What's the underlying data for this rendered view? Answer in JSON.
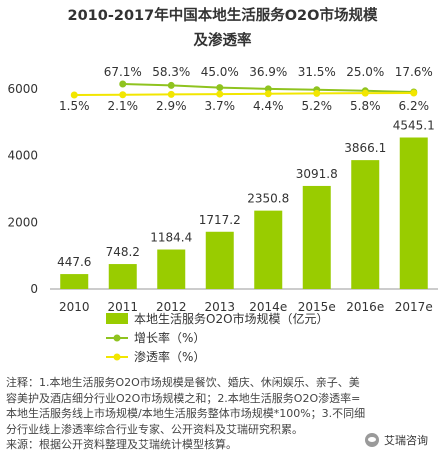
{
  "title_line1": "2010-2017年中国本地生活服务O2O市场规模",
  "title_line2": "及渗透率",
  "chart_data": {
    "type": "bar",
    "categories": [
      "2010",
      "2011",
      "2012",
      "2013",
      "2014e",
      "2015e",
      "2016e",
      "2017e"
    ],
    "ylim": [
      0,
      6000
    ],
    "yticks": [
      "0",
      "2000",
      "4000",
      "6000"
    ],
    "series": [
      {
        "name": "本地生活服务O2O市场规模（亿元）",
        "type": "bar",
        "color": "#99cc00",
        "values": [
          447.6,
          748.2,
          1184.4,
          1717.2,
          2350.8,
          3091.8,
          3866.1,
          4545.1
        ],
        "labels": [
          "447.6",
          "748.2",
          "1184.4",
          "1717.2",
          "2350.8",
          "3091.8",
          "3866.1",
          "4545.1"
        ]
      },
      {
        "name": "增长率（%）",
        "type": "line",
        "color": "#8fc31f",
        "values": [
          null,
          67.1,
          58.3,
          45.0,
          36.9,
          31.5,
          25.0,
          17.6
        ],
        "labels": [
          "",
          "67.1%",
          "58.3%",
          "45.0%",
          "36.9%",
          "31.5%",
          "25.0%",
          "17.6%"
        ]
      },
      {
        "name": "渗透率（%）",
        "type": "line",
        "color": "#f2e600",
        "values": [
          1.5,
          2.1,
          2.9,
          3.7,
          4.4,
          5.2,
          5.8,
          6.2
        ],
        "labels": [
          "1.5%",
          "2.1%",
          "2.9%",
          "3.7%",
          "4.4%",
          "5.2%",
          "5.8%",
          "6.2%"
        ]
      }
    ],
    "legend_position": "bottom"
  },
  "notes": {
    "line1": "注释：1.本地生活服务O2O市场规模是餐饮、婚庆、休闲娱乐、亲子、美",
    "line2": "容美护及酒店细分行业O2O市场规模之和；2.本地生活服务O2O渗透率=",
    "line3": "本地生活服务线上市场规模/本地生活服务整体市场规模*100%；3.不同细",
    "line4": "分行业线上渗透率综合行业专家、公开资料及艾瑞研究积累。",
    "line5": "来源：根据公开资料整理及艾瑞统计模型核算。"
  },
  "watermark": "艾瑞咨询"
}
